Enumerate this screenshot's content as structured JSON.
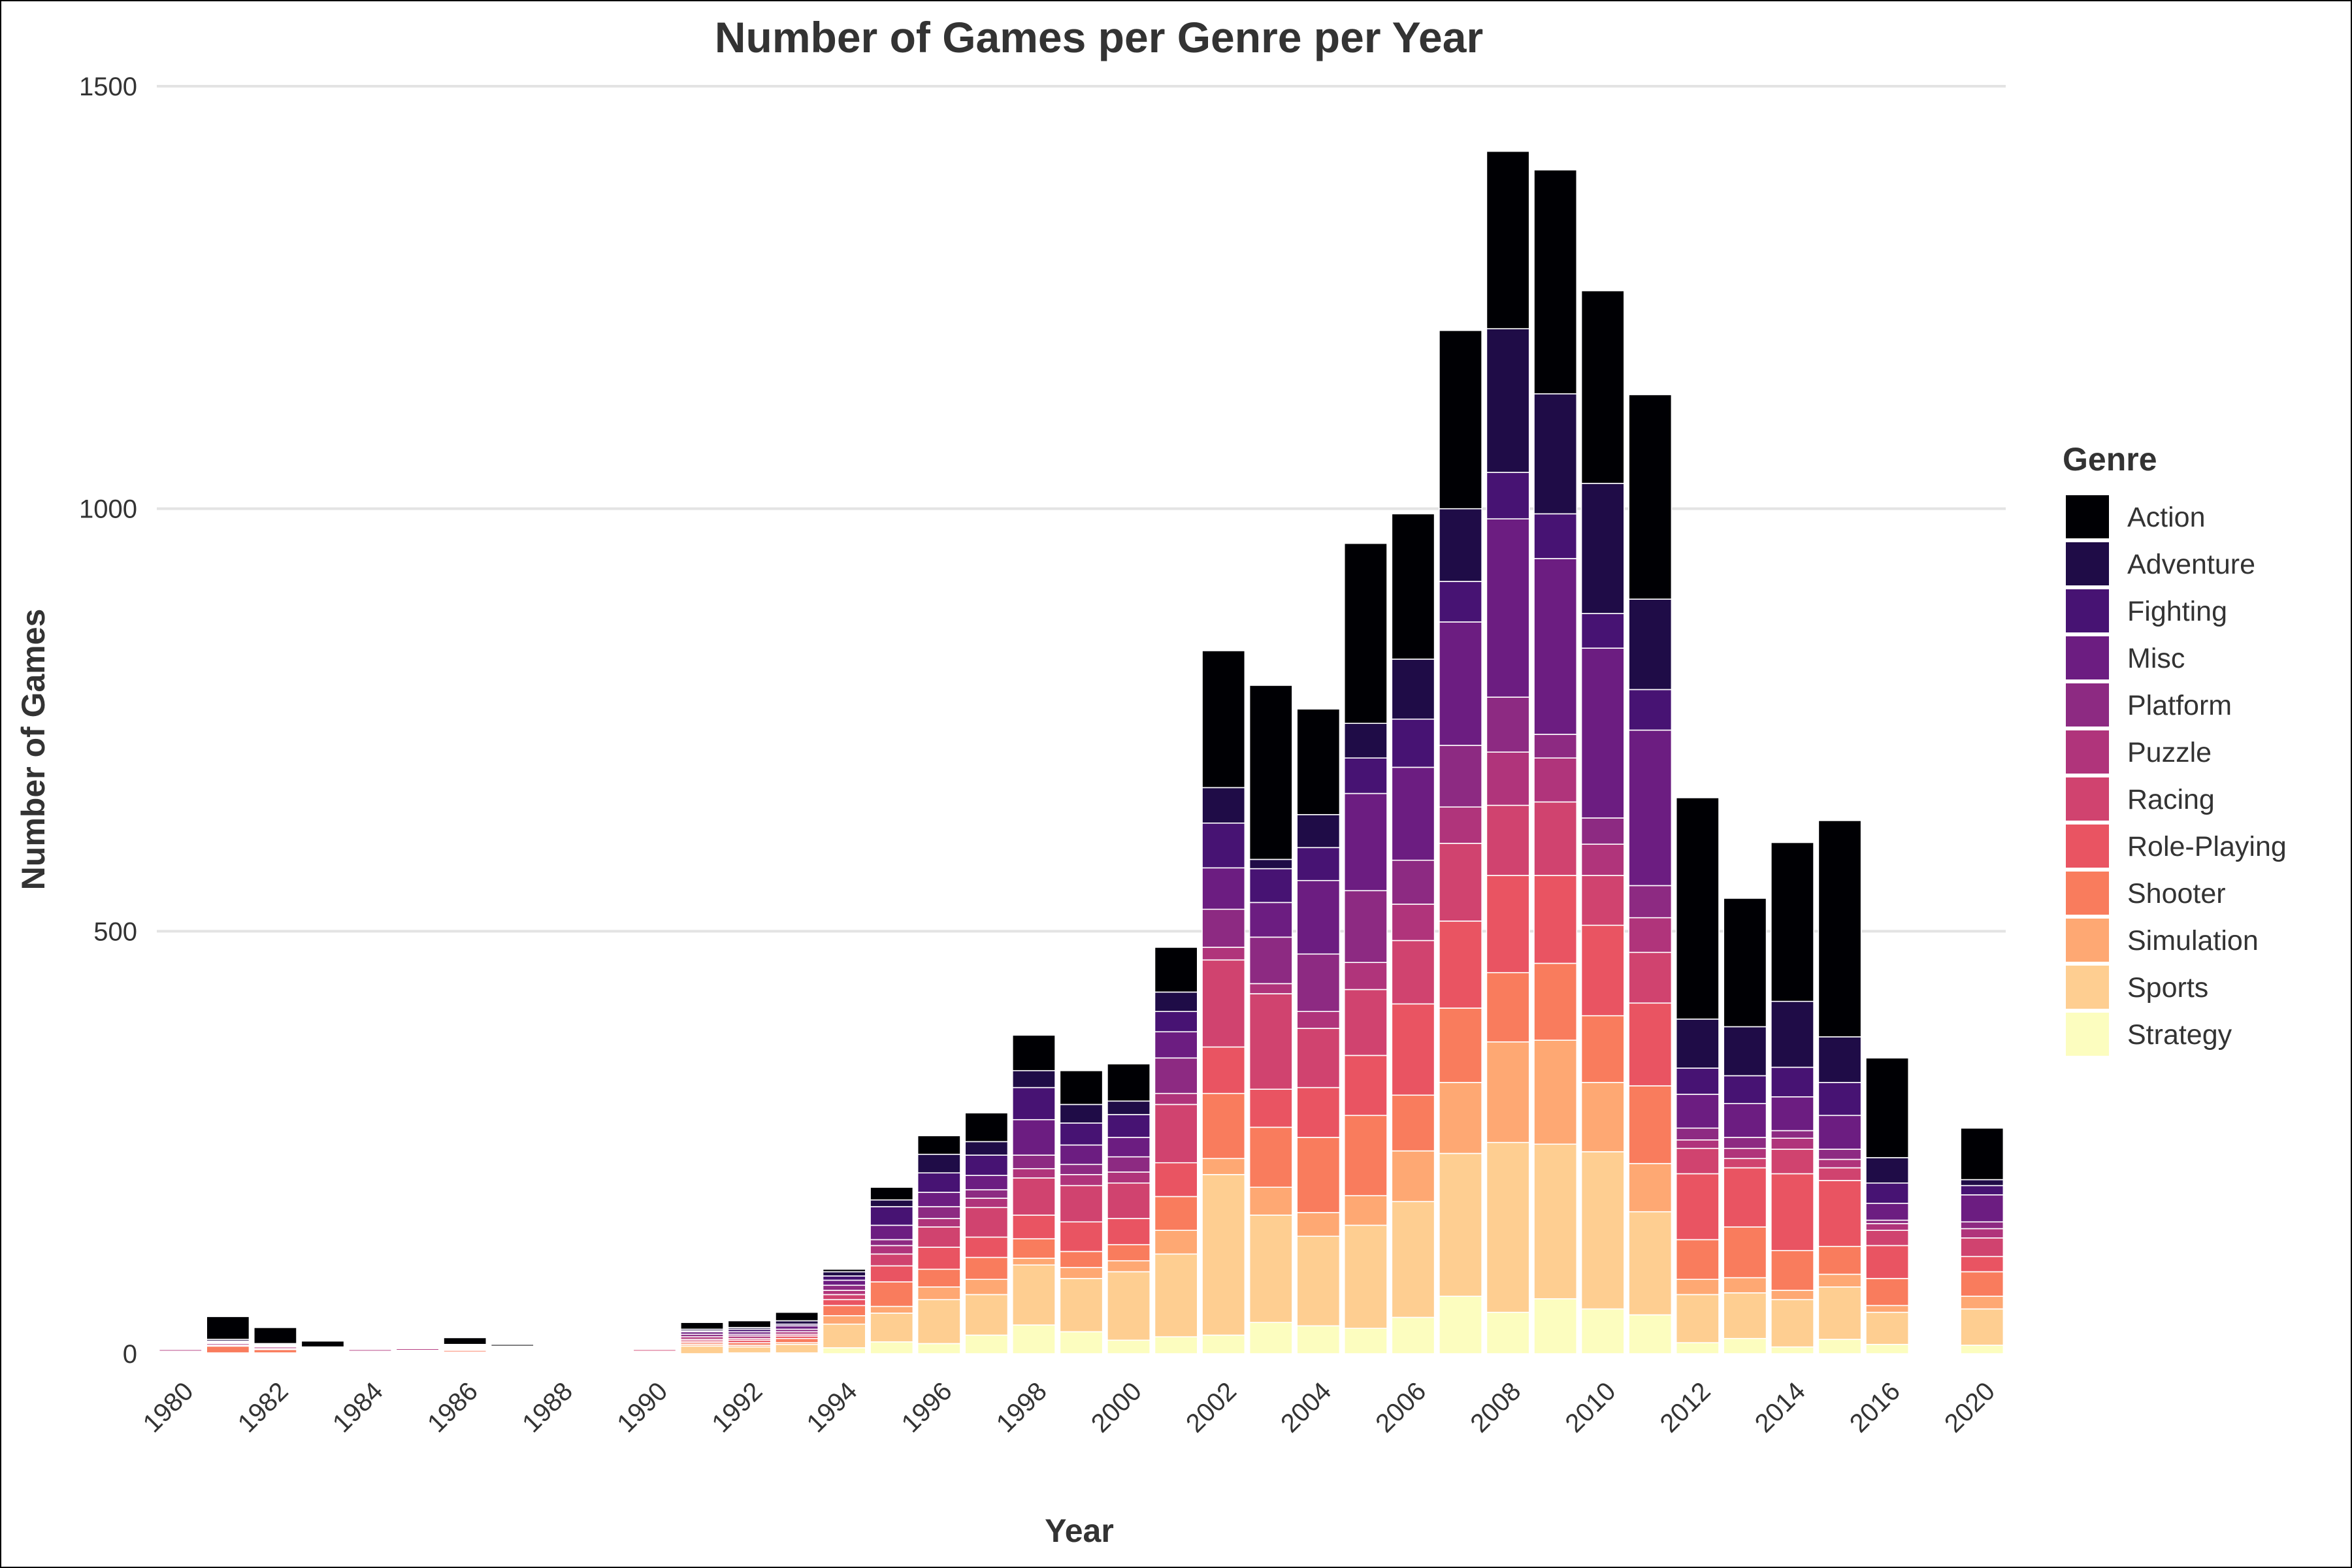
{
  "chart_data": {
    "type": "bar",
    "stacked": true,
    "title": "Number of Games per Genre per Year",
    "xlabel": "Year",
    "ylabel": "Number of Games",
    "ylim": [
      0,
      1500
    ],
    "yticks": [
      0,
      500,
      1000,
      1500
    ],
    "grid": true,
    "legend": {
      "title": "Genre",
      "position": "right"
    },
    "categories": [
      "1980",
      "1981",
      "1982",
      "1983",
      "1984",
      "1985",
      "1986",
      "1987",
      "1988",
      "1989",
      "1990",
      "1991",
      "1992",
      "1993",
      "1994",
      "1995",
      "1996",
      "1997",
      "1998",
      "1999",
      "2000",
      "2001",
      "2002",
      "2003",
      "2004",
      "2005",
      "2006",
      "2007",
      "2008",
      "2009",
      "2010",
      "2011",
      "2012",
      "2013",
      "2014",
      "2015",
      "2016",
      "2017",
      "2020"
    ],
    "xtick_labels": [
      "1980",
      "1982",
      "1984",
      "1986",
      "1988",
      "1990",
      "1992",
      "1994",
      "1996",
      "1998",
      "2000",
      "2002",
      "2004",
      "2006",
      "2008",
      "2010",
      "2012",
      "2014",
      "2016",
      "2020"
    ],
    "series": [
      {
        "name": "Strategy",
        "color": "#FCFDBF",
        "values": [
          0,
          0,
          0,
          0,
          0,
          0,
          0,
          0,
          0,
          0,
          0,
          0,
          1,
          1,
          7,
          14,
          12,
          22,
          34,
          26,
          16,
          20,
          22,
          37,
          33,
          30,
          43,
          68,
          49,
          65,
          53,
          46,
          13,
          18,
          8,
          17,
          11,
          0,
          10
        ]
      },
      {
        "name": "Sports",
        "color": "#FECE91",
        "values": [
          1,
          1,
          1,
          1,
          1,
          1,
          1,
          1,
          1,
          1,
          1,
          9,
          7,
          10,
          28,
          34,
          52,
          48,
          71,
          63,
          81,
          98,
          190,
          127,
          106,
          122,
          137,
          169,
          201,
          183,
          186,
          122,
          57,
          54,
          56,
          62,
          38,
          0,
          43
        ]
      },
      {
        "name": "Simulation",
        "color": "#FEA873",
        "values": [
          0,
          0,
          0,
          0,
          0,
          0,
          1,
          0,
          0,
          0,
          0,
          2,
          2,
          2,
          10,
          8,
          15,
          18,
          8,
          13,
          13,
          28,
          19,
          33,
          28,
          35,
          60,
          84,
          119,
          123,
          82,
          57,
          18,
          18,
          11,
          15,
          8,
          0,
          15
        ]
      },
      {
        "name": "Shooter",
        "color": "#F97C5D",
        "values": [
          1,
          8,
          4,
          1,
          1,
          1,
          2,
          1,
          1,
          1,
          1,
          2,
          3,
          5,
          12,
          29,
          21,
          26,
          23,
          19,
          19,
          40,
          77,
          71,
          89,
          95,
          66,
          88,
          82,
          91,
          79,
          92,
          47,
          60,
          47,
          33,
          32,
          0,
          29
        ]
      },
      {
        "name": "Role-Playing",
        "color": "#E95462",
        "values": [
          0,
          0,
          0,
          0,
          0,
          1,
          1,
          1,
          1,
          1,
          1,
          2,
          3,
          3,
          7,
          19,
          26,
          24,
          28,
          35,
          31,
          40,
          55,
          45,
          59,
          71,
          108,
          103,
          115,
          104,
          107,
          98,
          78,
          70,
          91,
          78,
          39,
          1,
          18
        ]
      },
      {
        "name": "Racing",
        "color": "#D0436F",
        "values": [
          1,
          1,
          1,
          1,
          1,
          1,
          1,
          1,
          1,
          1,
          2,
          2,
          2,
          2,
          6,
          14,
          24,
          35,
          44,
          43,
          42,
          69,
          103,
          113,
          70,
          78,
          75,
          92,
          83,
          87,
          59,
          60,
          30,
          11,
          29,
          15,
          18,
          0,
          22
        ]
      },
      {
        "name": "Puzzle",
        "color": "#B0347B",
        "values": [
          2,
          2,
          2,
          1,
          2,
          2,
          1,
          1,
          1,
          1,
          1,
          3,
          3,
          3,
          5,
          10,
          10,
          11,
          11,
          13,
          13,
          13,
          15,
          12,
          20,
          32,
          43,
          43,
          63,
          52,
          37,
          41,
          10,
          12,
          13,
          10,
          8,
          1,
          11
        ]
      },
      {
        "name": "Platform",
        "color": "#8D2A82",
        "values": [
          1,
          1,
          1,
          1,
          0,
          1,
          1,
          1,
          1,
          1,
          1,
          3,
          2,
          3,
          6,
          7,
          14,
          10,
          16,
          12,
          18,
          42,
          45,
          55,
          68,
          85,
          52,
          73,
          65,
          28,
          31,
          38,
          14,
          13,
          9,
          12,
          4,
          0,
          8
        ]
      },
      {
        "name": "Misc",
        "color": "#6C1D81",
        "values": [
          0,
          1,
          1,
          1,
          0,
          0,
          1,
          1,
          1,
          1,
          1,
          3,
          3,
          4,
          6,
          17,
          17,
          17,
          42,
          23,
          23,
          31,
          49,
          41,
          87,
          115,
          110,
          146,
          211,
          208,
          201,
          184,
          40,
          40,
          40,
          40,
          20,
          0,
          32
        ]
      },
      {
        "name": "Fighting",
        "color": "#471373",
        "values": [
          0,
          1,
          1,
          1,
          0,
          0,
          1,
          1,
          1,
          1,
          1,
          1,
          3,
          2,
          5,
          22,
          23,
          24,
          38,
          26,
          27,
          24,
          53,
          40,
          39,
          42,
          57,
          48,
          55,
          53,
          41,
          48,
          31,
          33,
          35,
          39,
          24,
          0,
          11
        ]
      },
      {
        "name": "Adventure",
        "color": "#1F0C47",
        "values": [
          0,
          2,
          1,
          1,
          0,
          0,
          1,
          1,
          1,
          1,
          1,
          2,
          2,
          4,
          5,
          8,
          22,
          16,
          20,
          22,
          16,
          23,
          42,
          11,
          39,
          41,
          71,
          86,
          170,
          142,
          154,
          107,
          58,
          58,
          78,
          54,
          30,
          0,
          7
        ]
      },
      {
        "name": "Action",
        "color": "#000004",
        "values": [
          1,
          27,
          19,
          7,
          1,
          1,
          8,
          2,
          1,
          1,
          1,
          8,
          8,
          10,
          3,
          15,
          22,
          34,
          42,
          40,
          44,
          53,
          162,
          206,
          125,
          213,
          172,
          211,
          210,
          265,
          228,
          242,
          262,
          152,
          188,
          256,
          118,
          0,
          61
        ]
      }
    ]
  }
}
